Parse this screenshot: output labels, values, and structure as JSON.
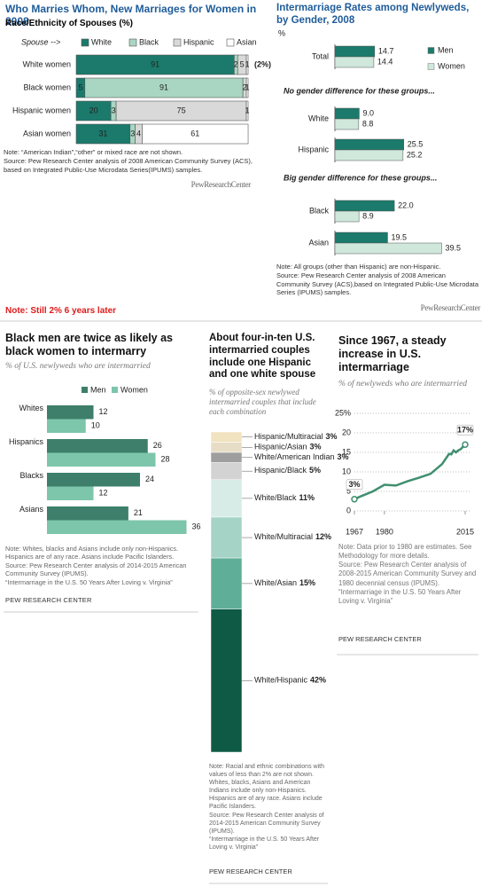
{
  "caption": "Note: Still 2% 6 years later",
  "chart_data": [
    {
      "type": "stacked-hbar",
      "title": "Who Marries Whom, New Marriages for Women in 2008",
      "subtitle": "Race/Ethnicity of Spouses (%)",
      "legend_title": "Spouse -->",
      "categories": [
        "White women",
        "Black women",
        "Hispanic women",
        "Asian women"
      ],
      "series": [
        {
          "name": "White",
          "color": "#1b7a6b",
          "values": [
            91,
            5,
            20,
            31
          ]
        },
        {
          "name": "Black",
          "color": "#a9d6c2",
          "values": [
            2,
            91,
            3,
            3
          ]
        },
        {
          "name": "Hispanic",
          "color": "#d9d9d9",
          "values": [
            5,
            2,
            75,
            4
          ]
        },
        {
          "name": "Asian",
          "color": "#ffffff",
          "values": [
            1,
            1,
            1,
            61
          ]
        }
      ],
      "xlim": [
        0,
        100
      ],
      "annotation": "(2%)",
      "notes": [
        "Note: “American Indian”,“other” or mixed race are not shown.",
        "Source: Pew Research Center analysis of 2008 American Community Survey (ACS), based on Integrated Public-Use Microdata Series(IPUMS) samples."
      ],
      "logo": "PewResearchCenter"
    },
    {
      "type": "hbar",
      "title": "Intermarriage Rates among Newlyweds, by Gender, 2008",
      "ylabel": "%",
      "categories": [
        "Total",
        "White",
        "Hispanic",
        "Black",
        "Asian"
      ],
      "series": [
        {
          "name": "Men",
          "color": "#1b7a6b",
          "values": [
            14.7,
            9.0,
            25.5,
            22.0,
            19.5
          ],
          "value_labels": [
            "14.7",
            "9.0",
            "25.5",
            "22.0",
            "19.5"
          ]
        },
        {
          "name": "Women",
          "color": "#cfe8db",
          "values": [
            14.4,
            8.8,
            25.2,
            8.9,
            39.5
          ],
          "value_labels": [
            "14.4",
            "8.8",
            "25.2",
            "8.9",
            "39.5"
          ]
        }
      ],
      "xlim": [
        0,
        40
      ],
      "annotations": [
        "No gender difference for these groups...",
        "Big gender difference for these groups..."
      ],
      "notes": [
        "Note: All groups (other than Hispanic) are non-Hispanic.",
        "Source: Pew Research Center analysis of 2008 American Community Survey (ACS),based on Integrated Public-Use Microdata Series (IPUMS) samples."
      ],
      "logo": "PewResearchCenter"
    },
    {
      "type": "hbar",
      "title": "Black men are twice as likely as black women to intermarry",
      "subtitle": "% of U.S. newlyweds who are intermarried",
      "categories": [
        "Whites",
        "Hispanics",
        "Blacks",
        "Asians"
      ],
      "series": [
        {
          "name": "Men",
          "color": "#3d7f6a",
          "values": [
            12,
            26,
            24,
            21
          ]
        },
        {
          "name": "Women",
          "color": "#7dc5ab",
          "values": [
            10,
            28,
            12,
            36
          ]
        }
      ],
      "xlim": [
        0,
        40
      ],
      "notes": [
        "Note: Whites, blacks and Asians include only non-Hispanics. Hispanics are of any race. Asians include Pacific Islanders.",
        "Source: Pew Research Center analysis of 2014-2015 American Community Survey (IPUMS).",
        "“Intermarriage in the U.S. 50 Years After Loving v. Virginia”"
      ],
      "logo": "PEW RESEARCH CENTER"
    },
    {
      "type": "stacked-column",
      "title": "About four-in-ten U.S. intermarried couples include one Hispanic and one white spouse",
      "subtitle": "% of opposite-sex newlywed intermarried couples that include each combination",
      "categories": [
        "Hispanic/Multiracial",
        "Hispanic/Asian",
        "White/American Indian",
        "Hispanic/Black",
        "White/Black",
        "White/Multiracial",
        "White/Asian",
        "White/Hispanic"
      ],
      "values": [
        3,
        3,
        3,
        5,
        11,
        12,
        15,
        42
      ],
      "value_labels": [
        "3%",
        "3%",
        "3%",
        "5%",
        "11%",
        "12%",
        "15%",
        "42%"
      ],
      "colors": [
        "#f1e3bf",
        "#e7ddc6",
        "#9e9e9e",
        "#d3d3d3",
        "#d7ece6",
        "#a5d4c6",
        "#5fae98",
        "#0e5a45"
      ],
      "notes": [
        "Note: Racial and ethnic combinations with values of less than 2% are not shown. Whites, blacks, Asians and American Indians include only non-Hispanics. Hispanics are of any race. Asians include Pacific Islanders.",
        "Source: Pew Research Center analysis of 2014-2015 American Community Survey (IPUMS).",
        "“Intermarriage in the U.S. 50 Years After Loving v. Virginia”"
      ],
      "logo": "PEW RESEARCH CENTER"
    },
    {
      "type": "line",
      "title": "Since 1967, a steady increase in U.S. intermarriage",
      "subtitle": "% of newlyweds who are intermarried",
      "x": [
        1967,
        1970,
        1975,
        1980,
        1985,
        1990,
        1995,
        2000,
        2005,
        2008,
        2009,
        2010,
        2011,
        2012,
        2013,
        2014,
        2015
      ],
      "values": [
        3,
        3.8,
        5,
        6.7,
        6.5,
        7.6,
        8.5,
        9.5,
        12,
        14.6,
        14.5,
        15.5,
        15,
        15.5,
        15.8,
        16.4,
        17
      ],
      "value_labels": [
        "3%",
        null,
        null,
        null,
        null,
        null,
        null,
        null,
        null,
        null,
        null,
        null,
        null,
        null,
        null,
        null,
        "17%"
      ],
      "color": "#3f8f6f",
      "xlim": [
        1967,
        2015
      ],
      "xticks": [
        1967,
        1980,
        2015
      ],
      "ylim": [
        0,
        25
      ],
      "yticks": [
        0,
        5,
        10,
        15,
        20,
        {
          "value": 25,
          "label": "25%"
        }
      ],
      "grid": true,
      "notes": [
        "Note: Data prior to 1980 are estimates. See Methodology for more details.",
        "Source: Pew Research Center analysis of 2008-2015 American Community Survey and 1980 decennial census (IPUMS).",
        "“Intermarriage in the U.S. 50 Years After Loving v. Virginia”"
      ],
      "logo": "PEW RESEARCH CENTER"
    }
  ]
}
